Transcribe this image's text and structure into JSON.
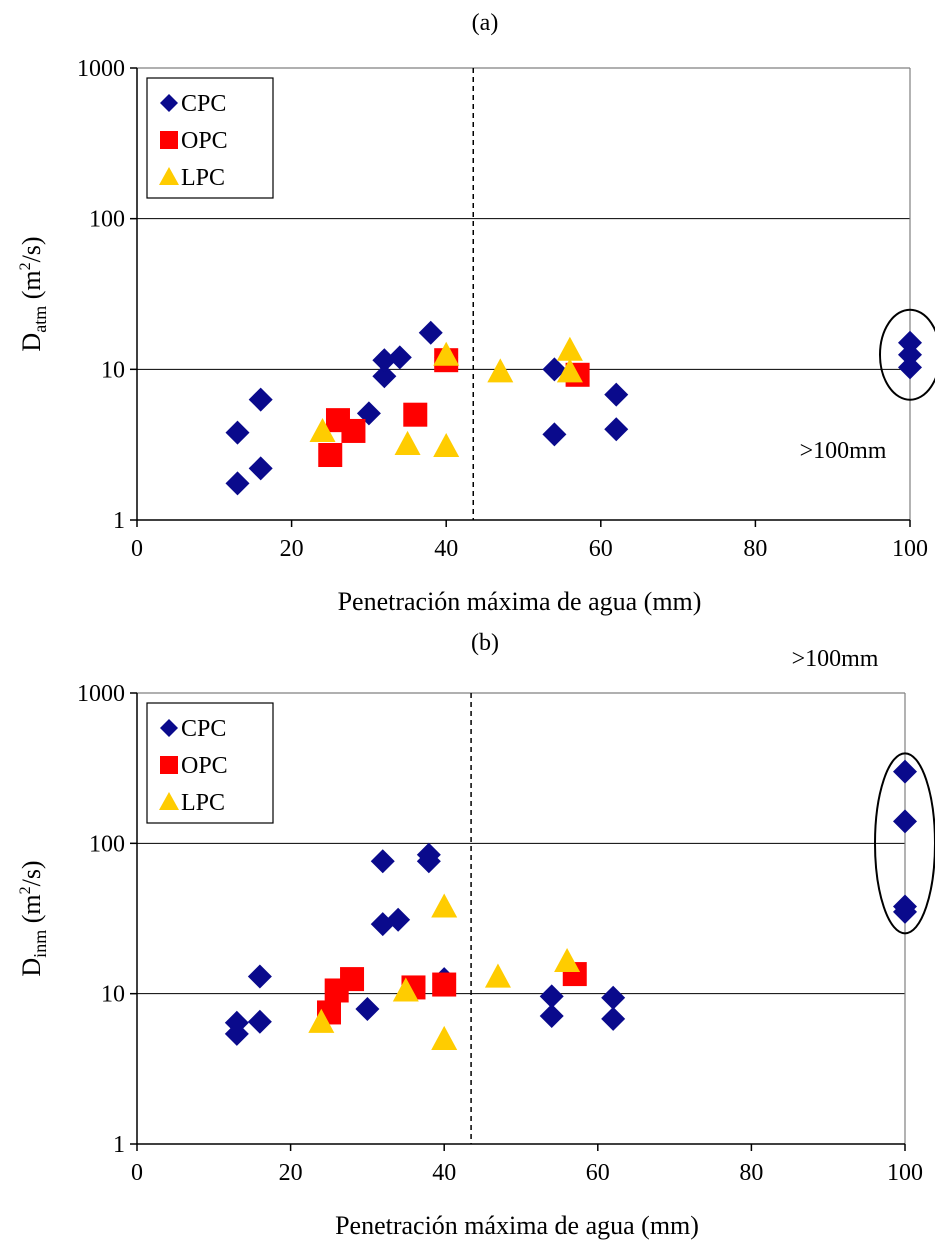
{
  "colors": {
    "CPC": "#0a0a8c",
    "OPC": "#ff0000",
    "LPC": "#ffcc00"
  },
  "chart_data": [
    {
      "type": "scatter",
      "panel_label": "(a)",
      "xlabel": "Penetración máxima de agua (mm)",
      "ylabel_main": "D",
      "ylabel_sub": "atm",
      "ylabel_unit_pre": " (m",
      "ylabel_unit_sup": "2",
      "ylabel_unit_post": "/s)",
      "xlim": [
        0,
        100
      ],
      "ylim": [
        1,
        1000
      ],
      "yscale": "log",
      "xticks": [
        0,
        20,
        40,
        60,
        80,
        100
      ],
      "xtick_labels": [
        "0",
        "20",
        "40",
        "60",
        "80",
        "100"
      ],
      "yticks": [
        1,
        10,
        100,
        1000
      ],
      "ytick_labels": [
        "1",
        "10",
        "100",
        "1000"
      ],
      "gridlines_y": [
        10,
        100
      ],
      "vline_x": 43.5,
      "legend_position": "top-left",
      "annotation": ">100mm",
      "series": [
        {
          "name": "CPC",
          "marker": "diamond",
          "points": [
            [
              13,
              1.75
            ],
            [
              13,
              3.8
            ],
            [
              16,
              2.2
            ],
            [
              16,
              6.3
            ],
            [
              30,
              5.1
            ],
            [
              32,
              9
            ],
            [
              32,
              11.5
            ],
            [
              34,
              12
            ],
            [
              38,
              17.5
            ],
            [
              40,
              12
            ],
            [
              54,
              10
            ],
            [
              54,
              3.7
            ],
            [
              62,
              6.8
            ],
            [
              62,
              4
            ],
            [
              100,
              15
            ],
            [
              100,
              12.5
            ],
            [
              100,
              10.3
            ]
          ]
        },
        {
          "name": "OPC",
          "marker": "square",
          "points": [
            [
              25,
              2.7
            ],
            [
              26,
              4.6
            ],
            [
              28,
              3.9
            ],
            [
              36,
              5
            ],
            [
              40,
              11.5
            ],
            [
              57,
              9.2
            ]
          ]
        },
        {
          "name": "LPC",
          "marker": "triangle",
          "points": [
            [
              24,
              3.9
            ],
            [
              35,
              3.2
            ],
            [
              40,
              12.5
            ],
            [
              40,
              3.1
            ],
            [
              47,
              9.7
            ],
            [
              56,
              13.5
            ],
            [
              56,
              9.7
            ]
          ]
        }
      ],
      "ellipse_points": [
        100,
        12.5
      ]
    },
    {
      "type": "scatter",
      "panel_label": "(b)",
      "xlabel": "Penetración máxima de agua (mm)",
      "ylabel_main": "D",
      "ylabel_sub": "inm",
      "ylabel_unit_pre": " (m",
      "ylabel_unit_sup": "2",
      "ylabel_unit_post": "/s)",
      "xlim": [
        0,
        100
      ],
      "ylim": [
        1,
        1000
      ],
      "yscale": "log",
      "xticks": [
        0,
        20,
        40,
        60,
        80,
        100
      ],
      "xtick_labels": [
        "0",
        "20",
        "40",
        "60",
        "80",
        "100"
      ],
      "yticks": [
        1,
        10,
        100,
        1000
      ],
      "ytick_labels": [
        "1",
        "10",
        "100",
        "1000"
      ],
      "gridlines_y": [
        10,
        100
      ],
      "vline_x": 43.5,
      "legend_position": "top-left",
      "annotation": ">100mm",
      "series": [
        {
          "name": "CPC",
          "marker": "diamond",
          "points": [
            [
              13,
              5.4
            ],
            [
              13,
              6.4
            ],
            [
              16,
              6.5
            ],
            [
              16,
              13
            ],
            [
              30,
              7.9
            ],
            [
              32,
              29
            ],
            [
              32,
              76
            ],
            [
              34,
              31
            ],
            [
              38,
              76
            ],
            [
              38,
              84
            ],
            [
              40,
              12.5
            ],
            [
              54,
              9.6
            ],
            [
              54,
              7.1
            ],
            [
              62,
              9.4
            ],
            [
              62,
              6.8
            ],
            [
              100,
              300
            ],
            [
              100,
              140
            ],
            [
              100,
              38
            ],
            [
              100,
              35
            ]
          ]
        },
        {
          "name": "OPC",
          "marker": "square",
          "points": [
            [
              25,
              7.5
            ],
            [
              26,
              10.5
            ],
            [
              28,
              12.5
            ],
            [
              36,
              11
            ],
            [
              40,
              11.5
            ],
            [
              57,
              13.5
            ]
          ]
        },
        {
          "name": "LPC",
          "marker": "triangle",
          "points": [
            [
              24,
              6.5
            ],
            [
              35,
              10.5
            ],
            [
              40,
              38
            ],
            [
              40,
              5
            ],
            [
              47,
              13
            ],
            [
              56,
              16.5
            ]
          ]
        }
      ],
      "ellipse_points": [
        100,
        100
      ]
    }
  ]
}
